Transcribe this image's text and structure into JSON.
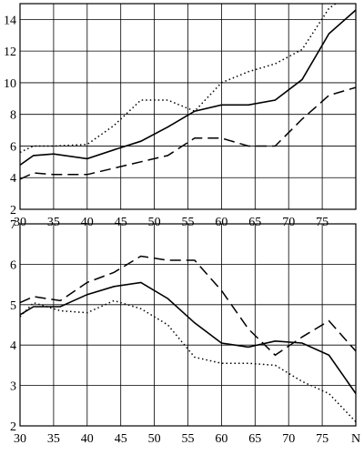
{
  "chart_data": [
    {
      "type": "line",
      "xlim": [
        30,
        80
      ],
      "ylim": [
        2,
        15
      ],
      "grid": true,
      "x_ticks": [
        30,
        35,
        40,
        45,
        50,
        55,
        60,
        65,
        70,
        75
      ],
      "x_tick_labels": [
        "30",
        "35",
        "40",
        "45",
        "50",
        "55",
        "60",
        "65",
        "70",
        "75"
      ],
      "y_ticks": [
        2,
        4,
        6,
        8,
        10,
        12,
        14
      ],
      "y_tick_labels": [
        "2",
        "4",
        "6",
        "8",
        "10",
        "12",
        "14"
      ],
      "series": [
        {
          "style": "solid",
          "x": [
            30,
            32,
            35,
            40,
            45,
            48,
            52,
            56,
            60,
            64,
            68,
            72,
            76,
            80
          ],
          "y": [
            4.8,
            5.4,
            5.5,
            5.2,
            5.9,
            6.3,
            7.2,
            8.2,
            8.6,
            8.6,
            8.9,
            10.2,
            13.1,
            14.6
          ]
        },
        {
          "style": "dotted",
          "x": [
            30,
            32,
            35,
            40,
            44,
            48,
            52,
            56,
            60,
            64,
            68,
            72,
            76,
            77
          ],
          "y": [
            5.6,
            6.0,
            6.0,
            6.1,
            7.3,
            8.9,
            8.9,
            8.2,
            10.0,
            10.7,
            11.2,
            12.1,
            14.7,
            15.0
          ]
        },
        {
          "style": "dashed",
          "x": [
            30,
            32,
            35,
            40,
            44,
            48,
            52,
            56,
            60,
            64,
            68,
            72,
            76,
            80
          ],
          "y": [
            3.9,
            4.3,
            4.2,
            4.2,
            4.6,
            5.0,
            5.4,
            6.5,
            6.5,
            6.0,
            6.0,
            7.7,
            9.2,
            9.7
          ]
        }
      ]
    },
    {
      "type": "line",
      "xlim": [
        30,
        80
      ],
      "ylim": [
        2,
        7
      ],
      "grid": true,
      "x_ticks": [
        30,
        35,
        40,
        45,
        50,
        55,
        60,
        65,
        70,
        75,
        80
      ],
      "x_tick_labels": [
        "30",
        "35",
        "40",
        "45",
        "50",
        "55",
        "60",
        "65",
        "70",
        "75",
        "N"
      ],
      "y_ticks": [
        2,
        3,
        4,
        5,
        6,
        7
      ],
      "y_tick_labels": [
        "2",
        "3",
        "4",
        "5",
        "6",
        "7"
      ],
      "series": [
        {
          "style": "solid",
          "x": [
            30,
            32,
            36,
            40,
            44,
            48,
            52,
            56,
            60,
            64,
            68,
            72,
            76,
            80
          ],
          "y": [
            4.75,
            4.95,
            4.95,
            5.25,
            5.45,
            5.55,
            5.15,
            4.55,
            4.05,
            3.95,
            4.1,
            4.05,
            3.75,
            2.8
          ]
        },
        {
          "style": "dotted",
          "x": [
            30,
            32,
            36,
            40,
            44,
            48,
            52,
            56,
            60,
            64,
            68,
            72,
            76,
            80
          ],
          "y": [
            4.7,
            5.05,
            4.85,
            4.8,
            5.1,
            4.9,
            4.5,
            3.7,
            3.55,
            3.55,
            3.5,
            3.1,
            2.8,
            2.1
          ]
        },
        {
          "style": "dashed",
          "x": [
            30,
            32,
            36,
            40,
            44,
            48,
            52,
            56,
            60,
            64,
            68,
            72,
            76,
            80
          ],
          "y": [
            5.05,
            5.2,
            5.1,
            5.55,
            5.8,
            6.2,
            6.1,
            6.1,
            5.35,
            4.4,
            3.75,
            4.2,
            4.6,
            3.85
          ]
        }
      ]
    }
  ]
}
